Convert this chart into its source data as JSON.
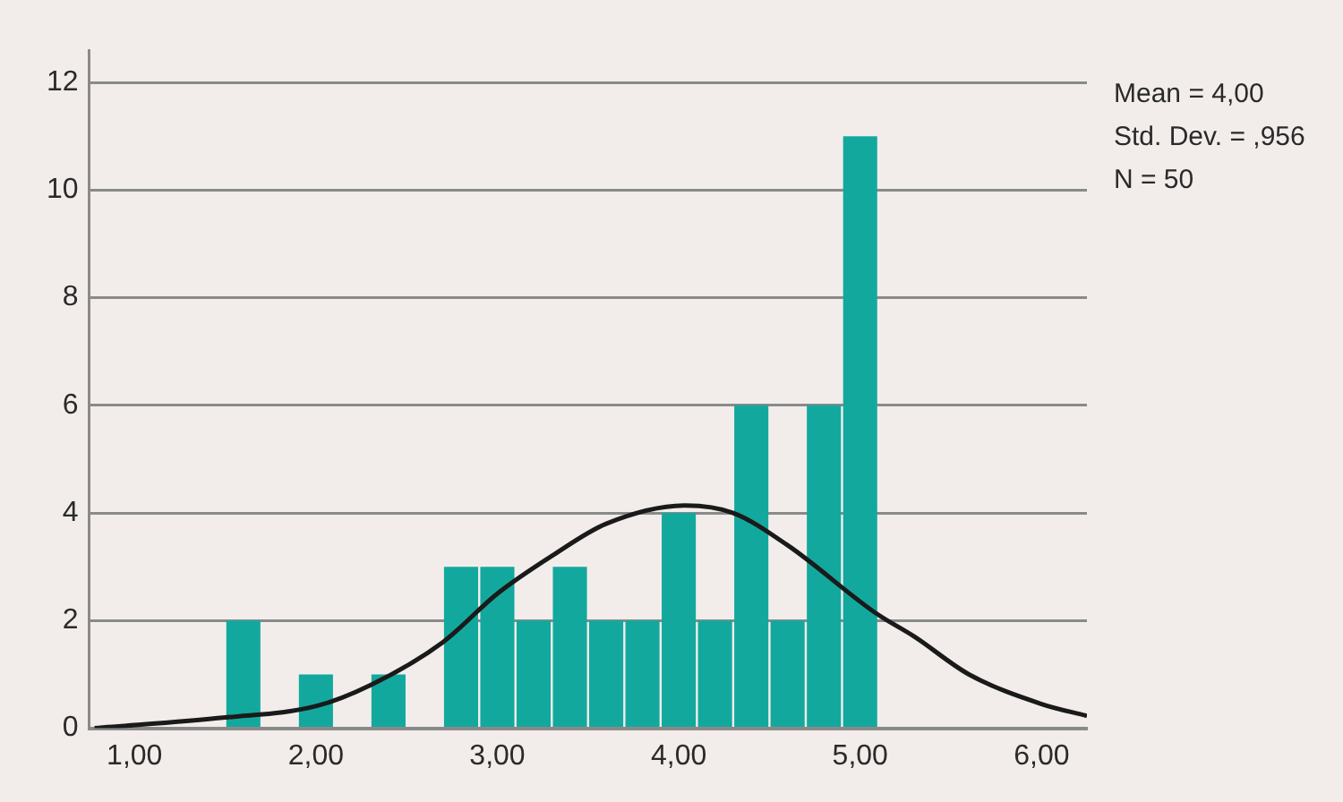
{
  "chart_data": {
    "type": "histogram",
    "bins": [
      1.5,
      1.7,
      1.9,
      2.1,
      2.3,
      2.5,
      2.7,
      2.9,
      3.1,
      3.3,
      3.5,
      3.7,
      3.9,
      4.1,
      4.3,
      4.5,
      4.7,
      4.9,
      5.1
    ],
    "values": [
      2,
      0,
      1,
      0,
      1,
      0,
      3,
      3,
      2,
      3,
      2,
      2,
      4,
      2,
      6,
      2,
      6,
      11
    ],
    "color": "#13a89e",
    "series": [
      {
        "type": "line",
        "color": "#1a1a1a",
        "x": [
          0.78,
          1.5,
          2.0,
          2.3,
          2.7,
          3.0,
          3.3,
          3.6,
          4.04,
          4.3,
          4.6,
          5.09,
          5.3,
          5.6,
          6.0,
          6.25
        ],
        "values": [
          0,
          0.2,
          0.41,
          0.8,
          1.6,
          2.5,
          3.2,
          3.8,
          4.14,
          4.0,
          3.4,
          2.13,
          1.7,
          1.0,
          0.45,
          0.23
        ]
      }
    ],
    "xlim": [
      0.75,
      6.25
    ],
    "xticks": [
      {
        "value": 1,
        "label": "1,00"
      },
      {
        "value": 2,
        "label": "2,00"
      },
      {
        "value": 3,
        "label": "3,00"
      },
      {
        "value": 4,
        "label": "4,00"
      },
      {
        "value": 5,
        "label": "5,00"
      },
      {
        "value": 6,
        "label": "6,00"
      }
    ],
    "ylim": [
      0,
      12.6
    ],
    "yticks": [
      0,
      2,
      4,
      6,
      8,
      10,
      12
    ],
    "grid": "y",
    "legend": false,
    "annotations": [
      "Mean = 4,00",
      "Std. Dev. = ,956",
      "N = 50"
    ]
  }
}
